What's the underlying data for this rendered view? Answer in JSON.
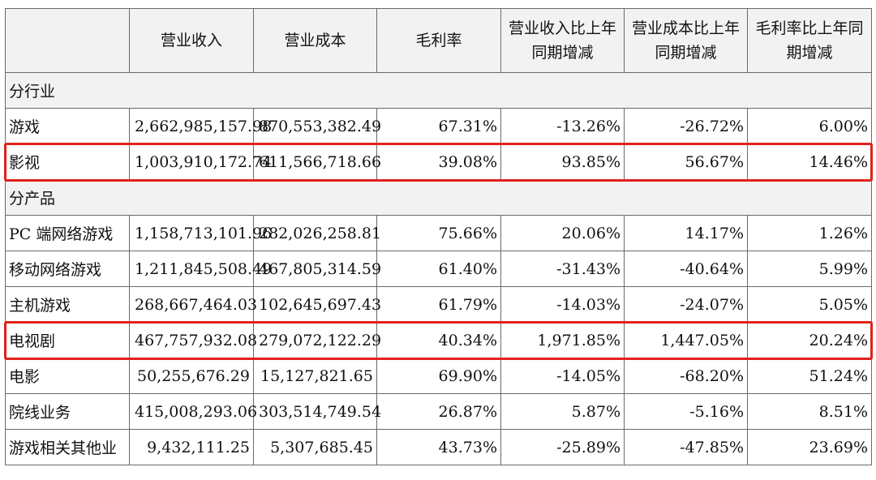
{
  "headers": [
    "",
    "营业收入",
    "营业成本",
    "毛利率",
    "营业收入比上年同期增减",
    "营业成本比上年同期增减",
    "毛利率比上年同期增减"
  ],
  "sections": [
    {
      "title": "分行业",
      "rows": [
        {
          "name": "游戏",
          "values": [
            "2,662,985,157.98",
            "870,553,382.49",
            "67.31%",
            "-13.26%",
            "-26.72%",
            "6.00%"
          ],
          "highlighted": false
        },
        {
          "name": "影视",
          "values": [
            "1,003,910,172.74",
            "611,566,718.66",
            "39.08%",
            "93.85%",
            "56.67%",
            "14.46%"
          ],
          "highlighted": true
        }
      ]
    },
    {
      "title": "分产品",
      "rows": [
        {
          "name": "PC 端网络游戏",
          "values": [
            "1,158,713,101.96",
            "282,026,258.81",
            "75.66%",
            "20.06%",
            "14.17%",
            "1.26%"
          ],
          "highlighted": false
        },
        {
          "name": "移动网络游戏",
          "values": [
            "1,211,845,508.49",
            "467,805,314.59",
            "61.40%",
            "-31.43%",
            "-40.64%",
            "5.99%"
          ],
          "highlighted": false
        },
        {
          "name": "主机游戏",
          "values": [
            "268,667,464.03",
            "102,645,697.43",
            "61.79%",
            "-14.03%",
            "-24.07%",
            "5.05%"
          ],
          "highlighted": false
        },
        {
          "name": "电视剧",
          "values": [
            "467,757,932.08",
            "279,072,122.29",
            "40.34%",
            "1,971.85%",
            "1,447.05%",
            "20.24%"
          ],
          "highlighted": true
        },
        {
          "name": "电影",
          "values": [
            "50,255,676.29",
            "15,127,821.65",
            "69.90%",
            "-14.05%",
            "-68.20%",
            "51.24%"
          ],
          "highlighted": false
        },
        {
          "name": "院线业务",
          "values": [
            "415,008,293.06",
            "303,514,749.54",
            "26.87%",
            "5.87%",
            "-5.16%",
            "8.51%"
          ],
          "highlighted": false
        },
        {
          "name": "游戏相关其他业",
          "values": [
            "9,432,111.25",
            "5,307,685.45",
            "43.73%",
            "-25.89%",
            "-47.85%",
            "23.69%"
          ],
          "highlighted": false
        }
      ]
    }
  ],
  "colors": {
    "highlight_border": "#e0221b",
    "header_bg": "#f2f2f2",
    "grid": "#6a6a6a"
  }
}
